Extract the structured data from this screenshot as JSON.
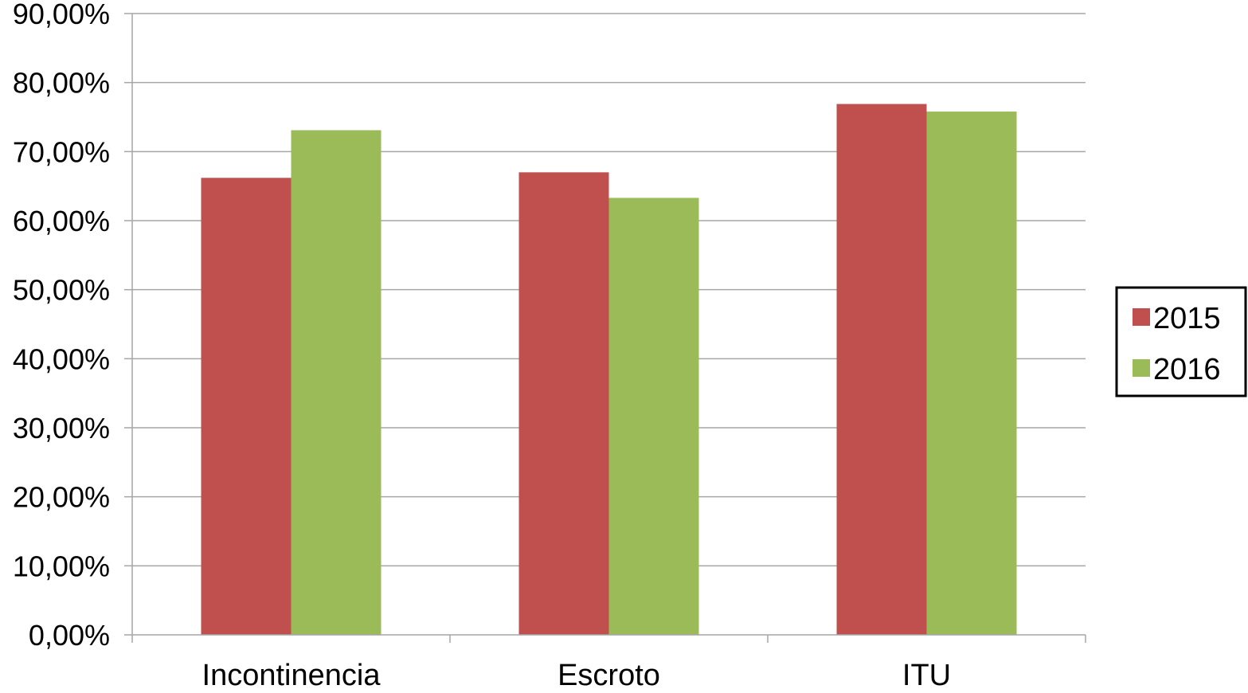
{
  "chart_data": {
    "type": "bar",
    "categories": [
      "Incontinencia",
      "Escroto",
      "ITU"
    ],
    "series": [
      {
        "name": "2015",
        "color": "#c0504d",
        "values": [
          66.2,
          67.0,
          76.9
        ]
      },
      {
        "name": "2016",
        "color": "#9bbb59",
        "values": [
          73.1,
          63.3,
          75.8
        ]
      }
    ],
    "ylim": [
      0,
      90
    ],
    "yticks": [
      0,
      10,
      20,
      30,
      40,
      50,
      60,
      70,
      80,
      90
    ],
    "ytick_labels": [
      "0,00%",
      "10,00%",
      "20,00%",
      "30,00%",
      "40,00%",
      "50,00%",
      "60,00%",
      "70,00%",
      "80,00%",
      "90,00%"
    ],
    "grid": true,
    "legend_position": "right",
    "title": "",
    "xlabel": "",
    "ylabel": ""
  }
}
